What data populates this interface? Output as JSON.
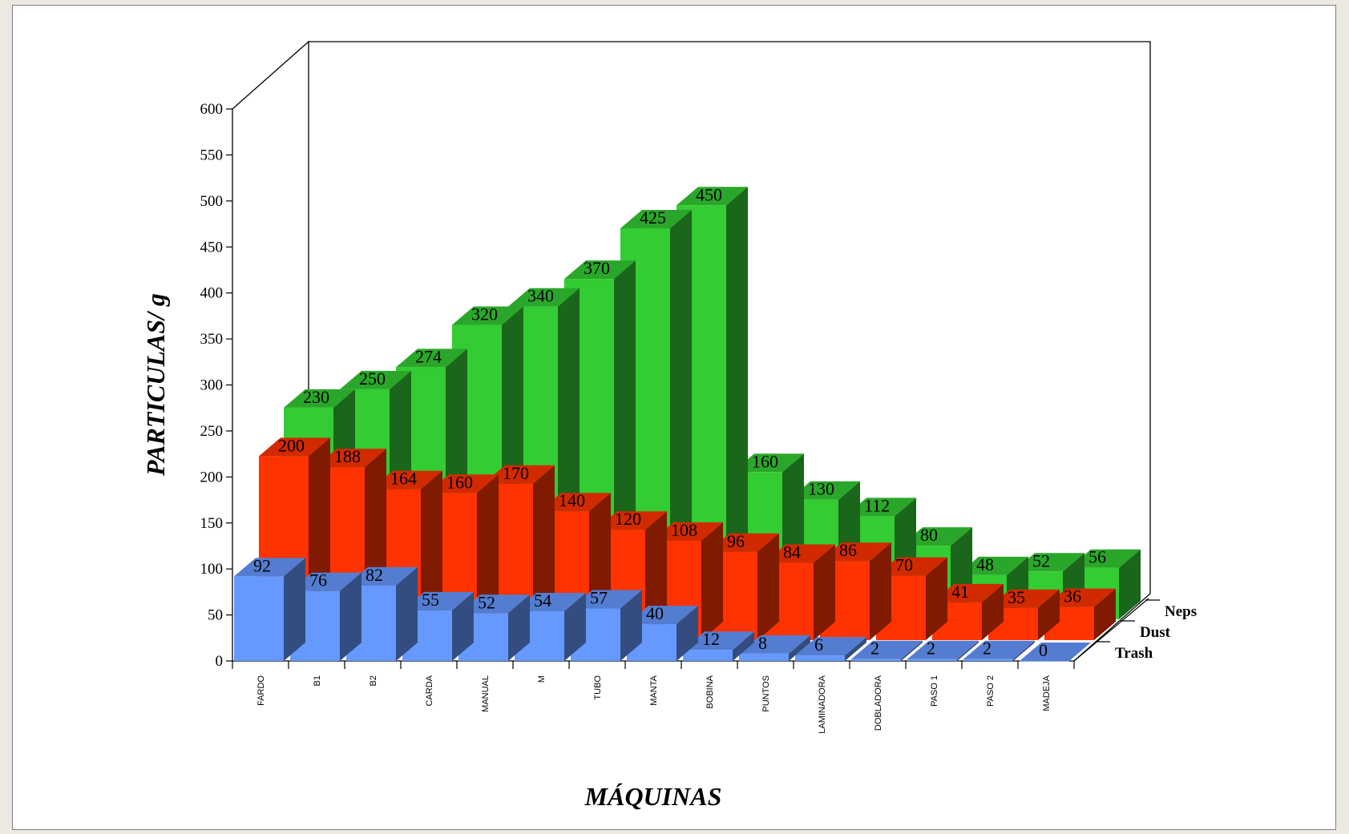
{
  "chart_data": {
    "type": "bar",
    "title": "",
    "xlabel": "MÁQUINAS",
    "ylabel": "PARTICULAS/ g",
    "ylim": [
      0,
      600
    ],
    "yticks": [
      "0",
      "50",
      "100",
      "150",
      "200",
      "250",
      "300",
      "350",
      "400",
      "450",
      "500",
      "550",
      "600"
    ],
    "categories": [
      "FARDO",
      "B1",
      "B2",
      "CARDA",
      "MANUAL",
      "M",
      "TUBO",
      "MANTA",
      "BOBINA",
      "PUNTOS",
      "LAMINADORA",
      "DOBLADORA",
      "PASO 1",
      "PASO 2",
      "MADEJA"
    ],
    "series": [
      {
        "name": "Trash",
        "color": "#6699ff",
        "values": [
          92,
          76,
          82,
          55,
          52,
          54,
          57,
          40,
          12,
          8,
          6,
          2,
          2,
          2,
          0
        ]
      },
      {
        "name": "Dust",
        "color": "#ff3300",
        "values": [
          200,
          188,
          164,
          160,
          170,
          140,
          120,
          108,
          96,
          84,
          86,
          70,
          41,
          35,
          36
        ]
      },
      {
        "name": "Neps",
        "color": "#33cc33",
        "values": [
          230,
          250,
          274,
          320,
          340,
          370,
          425,
          450,
          160,
          130,
          112,
          80,
          48,
          52,
          56
        ]
      }
    ],
    "grid": false,
    "legend": "none"
  }
}
